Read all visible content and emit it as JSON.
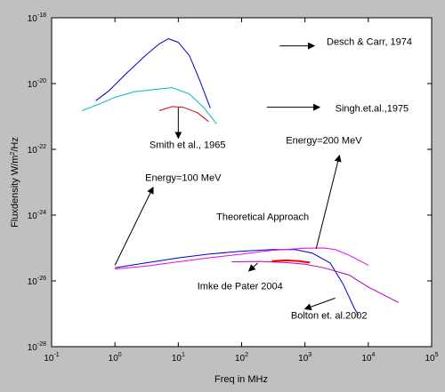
{
  "chart_data": {
    "type": "line",
    "xlabel": "Freq in MHz",
    "ylabel": "Fluxdensity W/m",
    "ylabel_exp": "2",
    "ylabel_tail": "/Hz",
    "xscale": "log",
    "yscale": "log",
    "xlim": [
      0.1,
      100000
    ],
    "ylim": [
      1e-28,
      1e-18
    ],
    "grid": false,
    "x_ticks": [
      {
        "base": "10",
        "exp": "-1",
        "value": 0.1
      },
      {
        "base": "10",
        "exp": "0",
        "value": 1
      },
      {
        "base": "10",
        "exp": "1",
        "value": 10
      },
      {
        "base": "10",
        "exp": "2",
        "value": 100
      },
      {
        "base": "10",
        "exp": "3",
        "value": 1000
      },
      {
        "base": "10",
        "exp": "4",
        "value": 10000
      },
      {
        "base": "10",
        "exp": "5",
        "value": 100000
      }
    ],
    "y_ticks": [
      {
        "base": "10",
        "exp": "-28",
        "value": 1e-28
      },
      {
        "base": "10",
        "exp": "-26",
        "value": 1e-26
      },
      {
        "base": "10",
        "exp": "-24",
        "value": 1e-24
      },
      {
        "base": "10",
        "exp": "-22",
        "value": 1e-22
      },
      {
        "base": "10",
        "exp": "-20",
        "value": 1e-20
      },
      {
        "base": "10",
        "exp": "-18",
        "value": 1e-18
      }
    ],
    "series": [
      {
        "key": "desch",
        "color": "#0000cc",
        "x": [
          0.5,
          0.8,
          1.5,
          3,
          5,
          7,
          10,
          15,
          22,
          32
        ],
        "y": [
          3e-21,
          6e-21,
          2e-20,
          7e-20,
          1.6e-19,
          2.3e-19,
          1.8e-19,
          7e-20,
          1.2e-20,
          1.8e-21
        ]
      },
      {
        "key": "singh",
        "color": "#00bbbb",
        "x": [
          0.3,
          0.6,
          1,
          2,
          4,
          8,
          15,
          25,
          40
        ],
        "y": [
          1.5e-21,
          2.5e-21,
          3.8e-21,
          5.6e-21,
          6.5e-21,
          7.5e-21,
          4.8e-21,
          1.9e-21,
          6e-22
        ]
      },
      {
        "key": "smith",
        "color": "#dd0000",
        "x": [
          5,
          8,
          12,
          20,
          30
        ],
        "y": [
          1.5e-21,
          2e-21,
          1.9e-21,
          1.3e-21,
          7e-22
        ]
      },
      {
        "key": "theory_100",
        "color": "#0000cc",
        "x": [
          1,
          3,
          10,
          30,
          100,
          300,
          700,
          1300,
          2500,
          4000,
          6000,
          7000
        ],
        "y": [
          2.5e-26,
          3.5e-26,
          5e-26,
          6.5e-26,
          8e-26,
          9e-26,
          9e-26,
          7e-26,
          3.5e-26,
          8e-27,
          1.5e-27,
          9e-28
        ]
      },
      {
        "key": "theory_200",
        "color": "#ee00ee",
        "x": [
          1,
          3,
          10,
          30,
          100,
          300,
          1000,
          2000,
          3000,
          5000,
          10000
        ],
        "y": [
          2.3e-26,
          2.8e-26,
          3.8e-26,
          5e-26,
          6.5e-26,
          8.5e-26,
          9.8e-26,
          1e-25,
          9e-26,
          6e-26,
          3e-26
        ]
      },
      {
        "key": "depater",
        "color": "#bb00bb",
        "x": [
          70,
          200,
          500,
          1000,
          2000,
          5000,
          10000,
          30000
        ],
        "y": [
          3.8e-26,
          3.9e-26,
          3.6e-26,
          3.2e-26,
          2.5e-26,
          1.5e-26,
          6.5e-27,
          2.2e-27
        ]
      },
      {
        "key": "bolton",
        "color": "#ff0000",
        "x": [
          300,
          500,
          800,
          1200
        ],
        "y": [
          4e-26,
          4.2e-26,
          4e-26,
          3.6e-26
        ]
      }
    ],
    "annotations": [
      {
        "text": "Desch & Carr, 1974",
        "x": 2200,
        "y": 1.5e-19,
        "arrow": {
          "from": [
            400,
            1.4e-19
          ],
          "to": [
            1400,
            1.4e-19
          ]
        }
      },
      {
        "text": "Singh.et.al.,1975",
        "x": 3000,
        "y": 1.4e-21,
        "arrow": {
          "from": [
            250,
            1.9e-21
          ],
          "to": [
            1700,
            1.9e-21
          ]
        }
      },
      {
        "text": "Smith et al., 1965",
        "x": 3.5,
        "y": 1.1e-22,
        "arrow": {
          "from": [
            10,
            1.85e-21
          ],
          "to": [
            10,
            2.2e-22
          ]
        }
      },
      {
        "text": "Energy=100 MeV",
        "x": 3,
        "y": 1.1e-23,
        "arrow": {
          "from": [
            1,
            3e-26
          ],
          "to": [
            4,
            7e-24
          ]
        }
      },
      {
        "text": "Energy=200 MeV",
        "x": 500,
        "y": 1.5e-22,
        "arrow": {
          "from": [
            1500,
            9.5e-26
          ],
          "to": [
            3500,
            6.5e-23
          ]
        }
      },
      {
        "text": "Theoretical Approach",
        "x": 40,
        "y": 7e-25,
        "arrow": null
      },
      {
        "text": "Imke de Pater 2004",
        "x": 20,
        "y": 5.5e-27,
        "arrow": {
          "from": [
            180,
            3.5e-26
          ],
          "to": [
            130,
            2e-26
          ]
        }
      },
      {
        "text": "Bolton et. al.2002",
        "x": 600,
        "y": 7e-28,
        "arrow": {
          "from": [
            3000,
            3e-27
          ],
          "to": [
            1000,
            1.4e-27
          ]
        }
      }
    ]
  }
}
